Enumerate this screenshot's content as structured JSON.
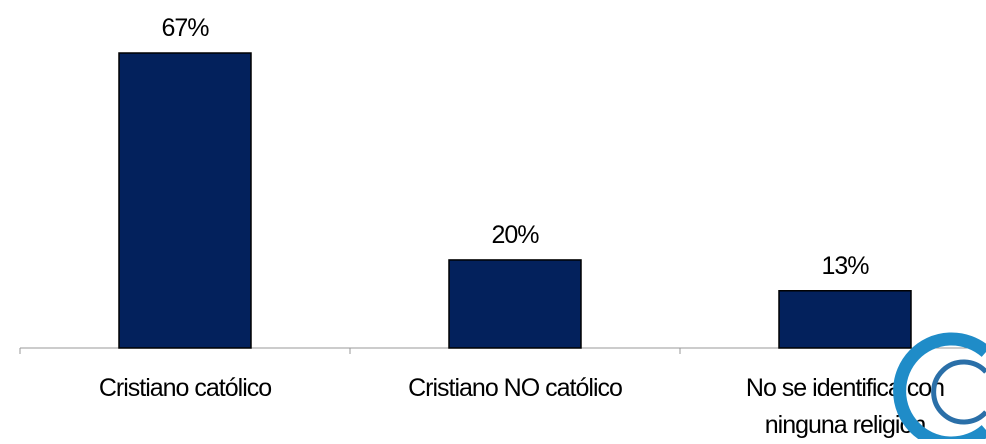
{
  "chart_data": {
    "type": "bar",
    "categories": [
      [
        "Cristiano católico"
      ],
      [
        "Cristiano NO católico"
      ],
      [
        "No se identifica con",
        "ninguna religión"
      ]
    ],
    "values": [
      67,
      20,
      13
    ],
    "value_labels": [
      "67%",
      "20%",
      "13%"
    ],
    "unit": "%",
    "ylim": [
      0,
      67
    ],
    "grid": false,
    "legend": "none",
    "colors": {
      "bar": "#03215C",
      "bar_stroke": "#000000",
      "axis": "#999999",
      "text": "#000000"
    }
  },
  "logo": {
    "icon": "c-logo-icon",
    "color": "#1F8CC8",
    "text": "C"
  }
}
